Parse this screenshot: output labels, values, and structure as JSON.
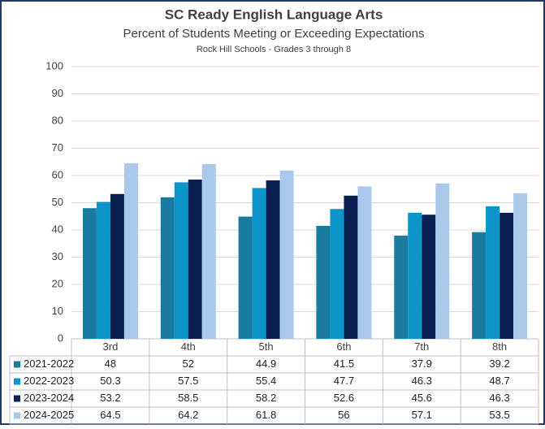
{
  "chart_data": {
    "type": "bar",
    "title": "SC Ready English Language Arts",
    "subtitle": "Percent of Students Meeting or Exceeding Expectations",
    "caption": "Rock Hill Schools - Grades 3 through 8",
    "categories": [
      "3rd",
      "4th",
      "5th",
      "6th",
      "7th",
      "8th"
    ],
    "series": [
      {
        "name": "2021-2022",
        "color": "#1b7a9f",
        "values": [
          48,
          52,
          44.9,
          41.5,
          37.9,
          39.2
        ]
      },
      {
        "name": "2022-2023",
        "color": "#0c95cb",
        "values": [
          50.3,
          57.5,
          55.4,
          47.7,
          46.3,
          48.7
        ]
      },
      {
        "name": "2023-2024",
        "color": "#0a1f52",
        "values": [
          53.2,
          58.5,
          58.2,
          52.6,
          45.6,
          46.3
        ]
      },
      {
        "name": "2024-2025",
        "color": "#a9c8ea",
        "values": [
          64.5,
          64.2,
          61.8,
          56,
          57.1,
          53.5
        ]
      }
    ],
    "ylim": [
      0,
      100
    ],
    "yticks": [
      0,
      10,
      20,
      30,
      40,
      50,
      60,
      70,
      80,
      90,
      100
    ],
    "grid": true
  }
}
